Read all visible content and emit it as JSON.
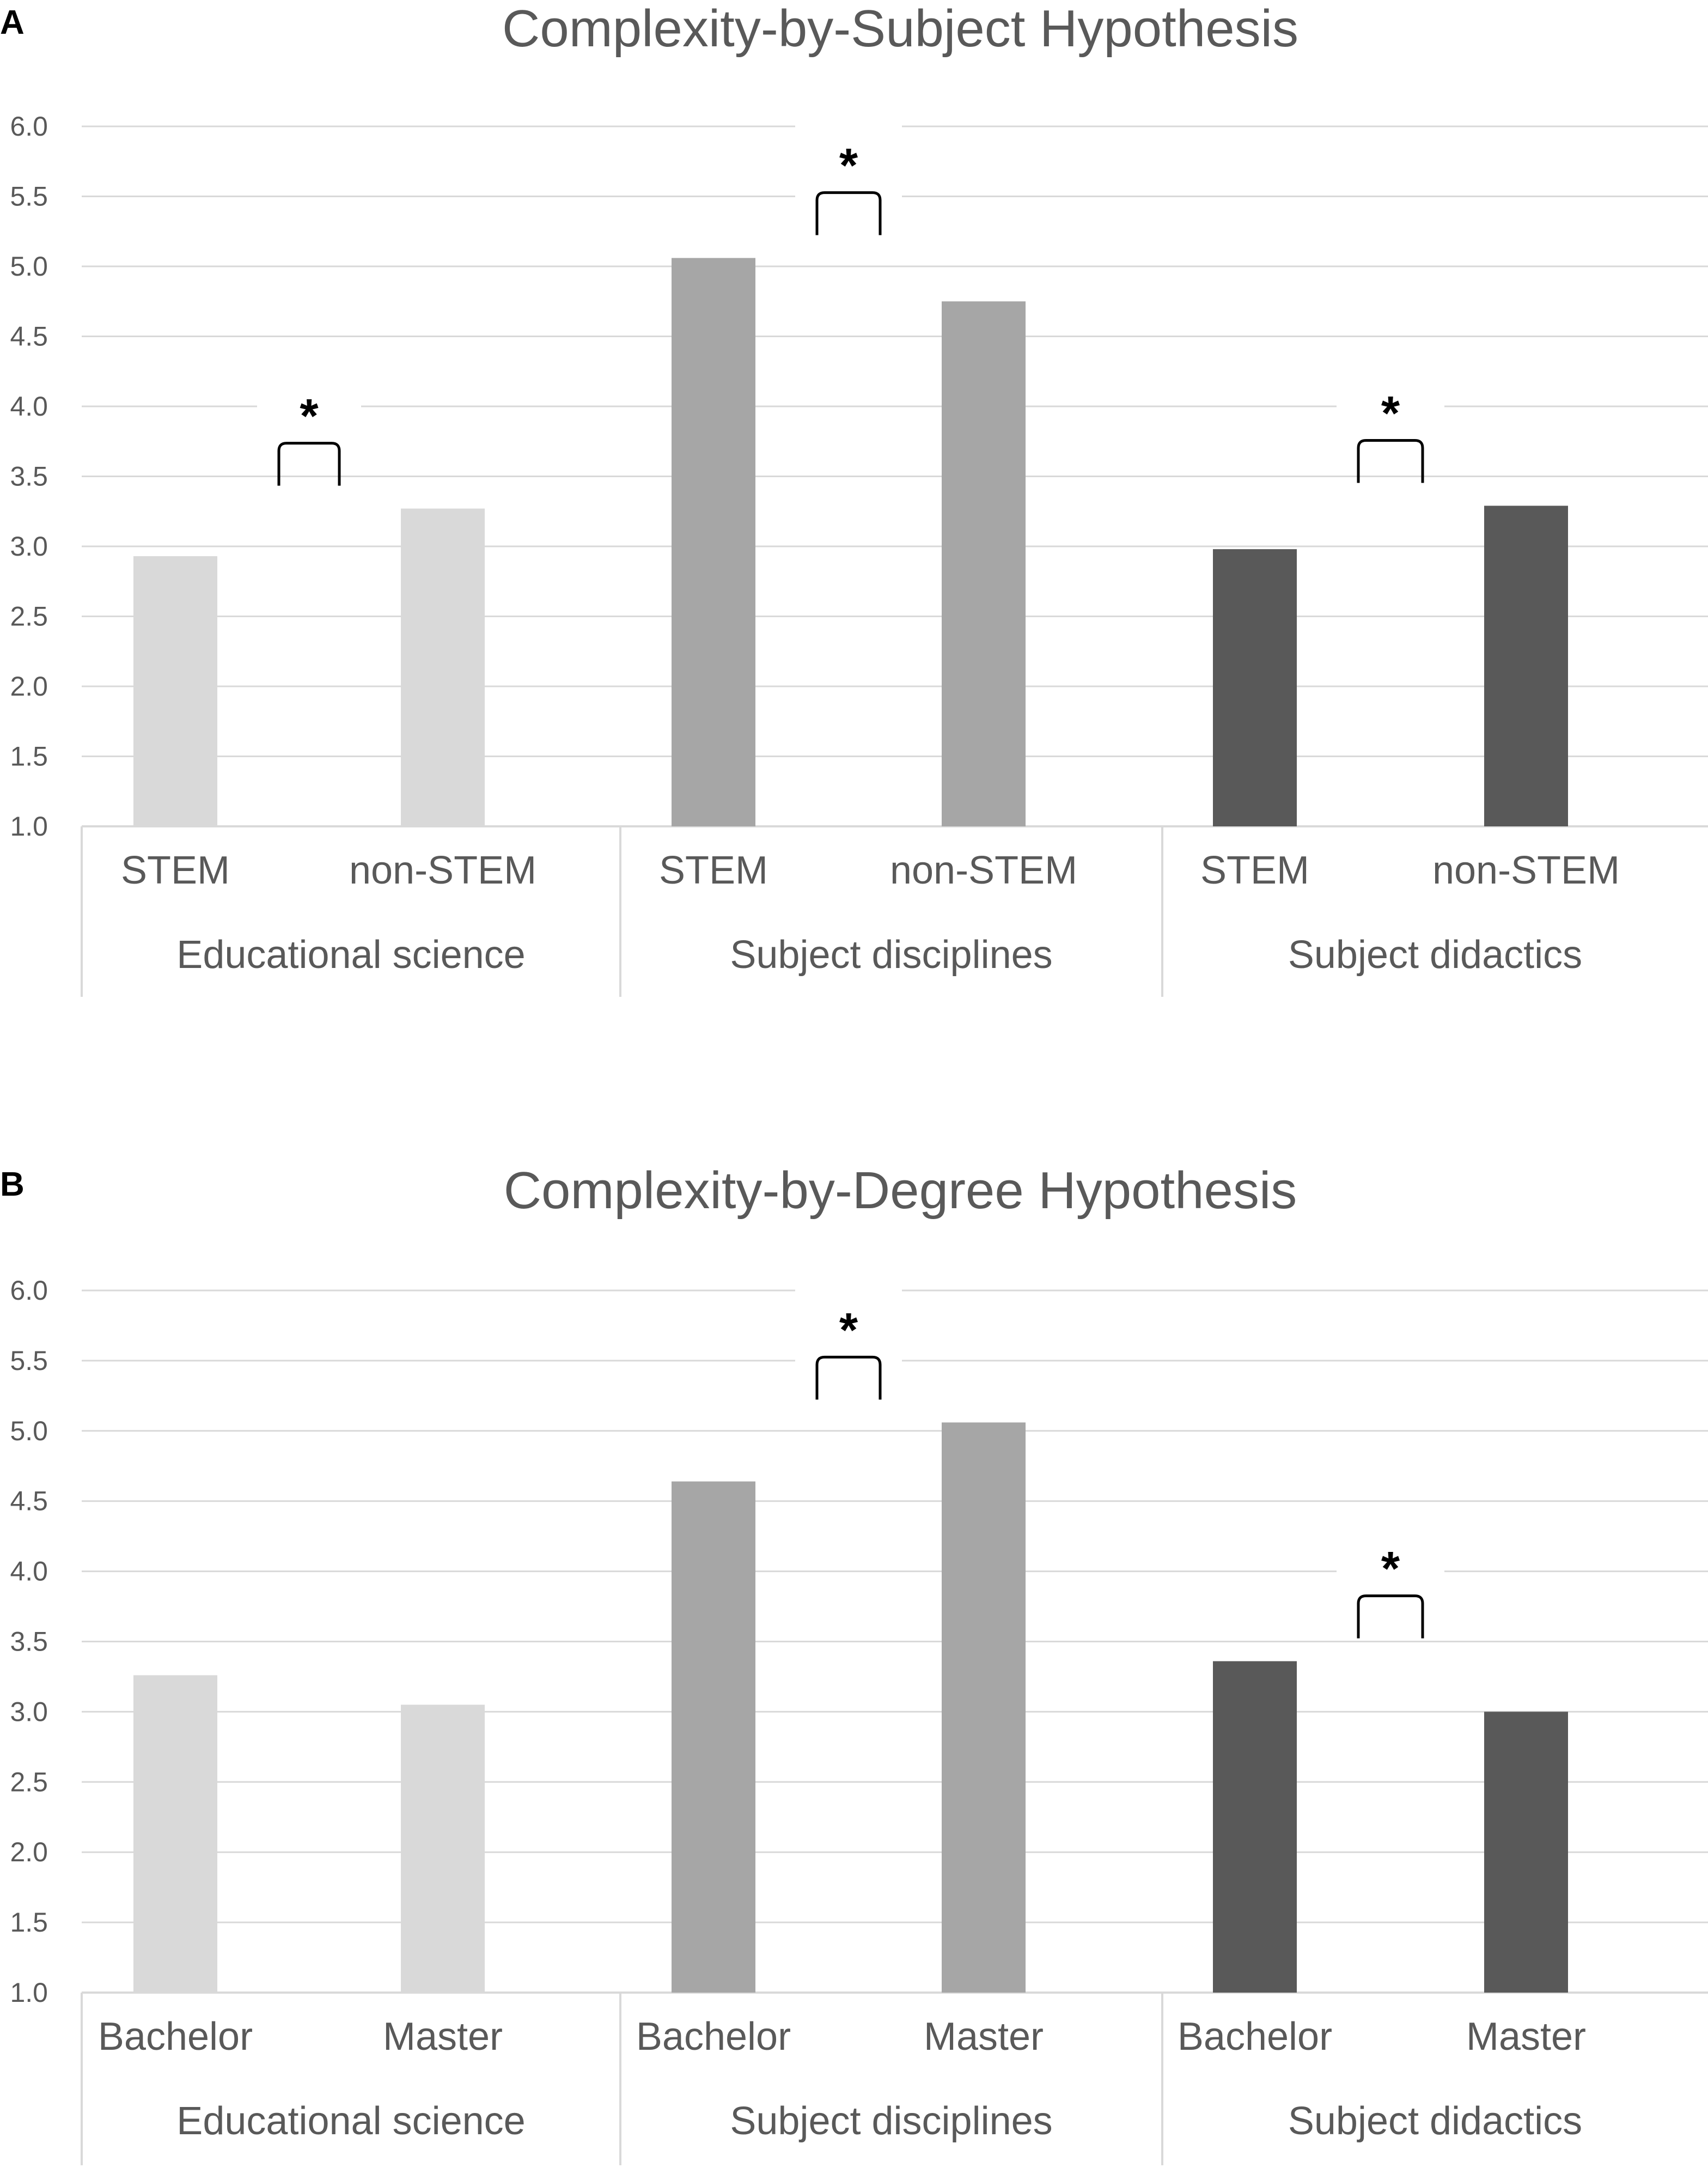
{
  "chart_data": [
    {
      "type": "bar",
      "panel_label": "A",
      "title": "Complexity-by-Subject Hypothesis",
      "xlabel": "",
      "ylabel": "",
      "ylim": [
        1.0,
        6.0
      ],
      "yticks": [
        "1.0",
        "1.5",
        "2.0",
        "2.5",
        "3.0",
        "3.5",
        "4.0",
        "4.5",
        "5.0",
        "5.5",
        "6.0"
      ],
      "grid": true,
      "groups": [
        {
          "name": "Educational science",
          "color": "#d9d9d9",
          "categories": [
            "STEM",
            "non-STEM"
          ],
          "values": [
            2.93,
            3.27
          ],
          "significant": true,
          "significance_label": "*"
        },
        {
          "name": "Subject disciplines",
          "color": "#a6a6a6",
          "categories": [
            "STEM",
            "non-STEM"
          ],
          "values": [
            5.06,
            4.75
          ],
          "significant": true,
          "significance_label": "*"
        },
        {
          "name": "Subject didactics",
          "color": "#595959",
          "categories": [
            "STEM",
            "non-STEM"
          ],
          "values": [
            2.98,
            3.29
          ],
          "significant": true,
          "significance_label": "*"
        }
      ]
    },
    {
      "type": "bar",
      "panel_label": "B",
      "title": "Complexity-by-Degree Hypothesis",
      "xlabel": "",
      "ylabel": "",
      "ylim": [
        1.0,
        6.0
      ],
      "yticks": [
        "1.0",
        "1.5",
        "2.0",
        "2.5",
        "3.0",
        "3.5",
        "4.0",
        "4.5",
        "5.0",
        "5.5",
        "6.0"
      ],
      "grid": true,
      "groups": [
        {
          "name": "Educational science",
          "color": "#d9d9d9",
          "categories": [
            "Bachelor",
            "Master"
          ],
          "values": [
            3.26,
            3.05
          ],
          "significant": false,
          "significance_label": ""
        },
        {
          "name": "Subject disciplines",
          "color": "#a6a6a6",
          "categories": [
            "Bachelor",
            "Master"
          ],
          "values": [
            4.64,
            5.06
          ],
          "significant": true,
          "significance_label": "*"
        },
        {
          "name": "Subject didactics",
          "color": "#595959",
          "categories": [
            "Bachelor",
            "Master"
          ],
          "values": [
            3.36,
            3.0
          ],
          "significant": true,
          "significance_label": "*"
        }
      ]
    }
  ]
}
